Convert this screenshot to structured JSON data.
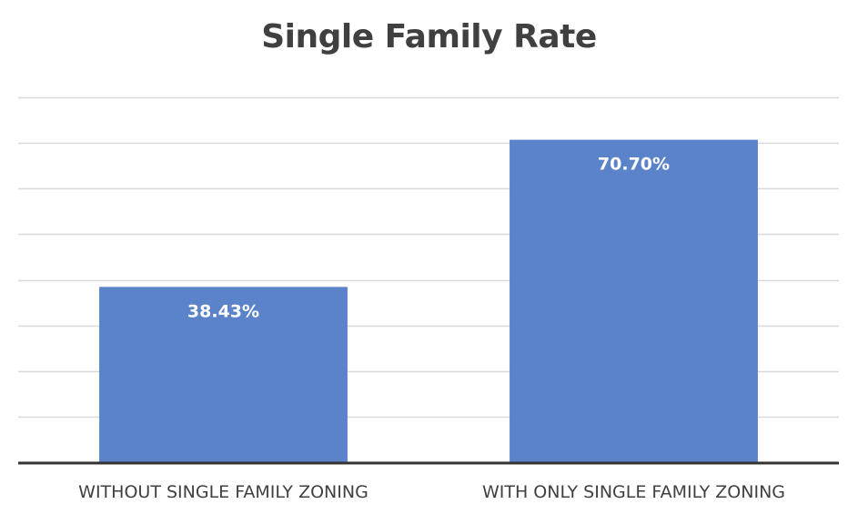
{
  "chart_data": {
    "type": "bar",
    "title": "Single Family Rate",
    "categories": [
      "WITHOUT SINGLE FAMILY ZONING",
      "WITH ONLY SINGLE FAMILY ZONING"
    ],
    "values": [
      38.43,
      70.7
    ],
    "data_labels": [
      "38.43%",
      "70.70%"
    ],
    "ylim": [
      0,
      80
    ],
    "y_gridline_step": 10,
    "grid": true,
    "y_tick_labels_visible": false,
    "legend": "none",
    "bar_color": "#5B83C9",
    "gridline_color": "#D9D9D9",
    "axis_color": "#333333"
  }
}
